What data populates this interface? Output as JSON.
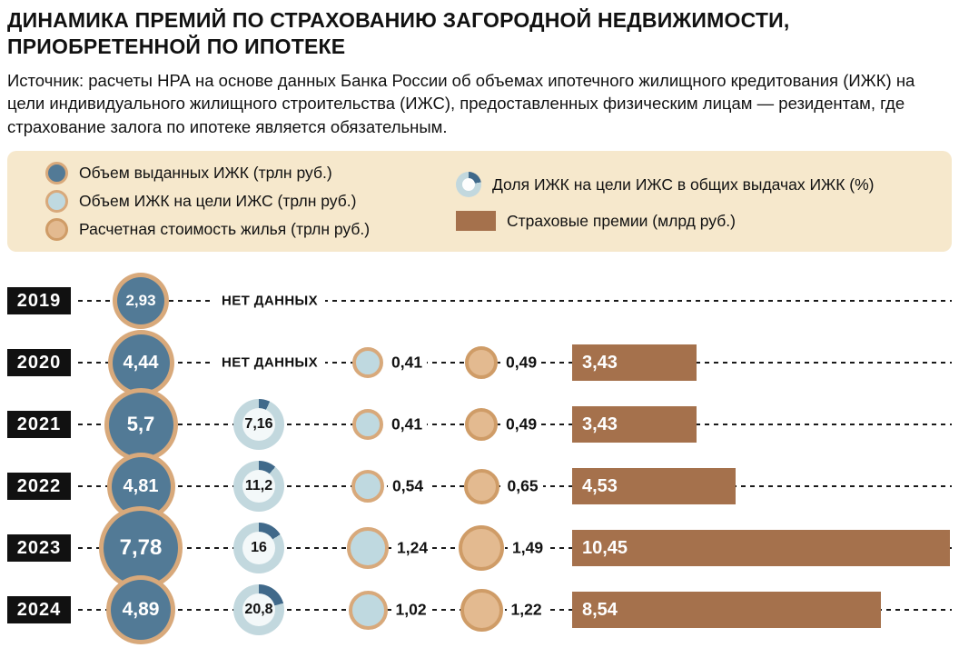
{
  "header": {
    "title": "ДИНАМИКА ПРЕМИЙ ПО СТРАХОВАНИЮ ЗАГОРОДНОЙ НЕДВИЖИМОСТИ, ПРИОБРЕТЕННОЙ ПО ИПОТЕКЕ",
    "source": "Источник: расчеты НРА на основе данных Банка России об объемах ипотечного жилищного кредитования (ИЖК) на цели индивидуального жилищного строительства (ИЖС), предоставленных физическим лицам — резидентам, где страхование залога по ипотеке является обязательным."
  },
  "legend": {
    "items": [
      {
        "label": "Объем выданных ИЖК (трлн руб.)",
        "icon": "issued-circle-icon",
        "color": "#527a96"
      },
      {
        "label": "Объем ИЖК на цели ИЖС (трлн руб.)",
        "icon": "izhs-circle-icon",
        "color": "#bfd9e0"
      },
      {
        "label": "Расчетная стоимость жилья (трлн руб.)",
        "icon": "cost-circle-icon",
        "color": "#e3ba90"
      },
      {
        "label": "Доля ИЖК на цели ИЖС в общих выдачах ИЖК (%)",
        "icon": "share-donut-icon",
        "color": "#40698a"
      },
      {
        "label": "Страховые премии (млрд руб.)",
        "icon": "premium-bar-icon",
        "color": "#a5714c"
      }
    ]
  },
  "colors": {
    "steel_blue": "#527a96",
    "donut_segment": "#40698a",
    "light_blue": "#bfd9e0",
    "donut_ring": "#c2d8de",
    "tan_ring": "#d8a97b",
    "tan_fill": "#e3ba90",
    "tan_dark_ring": "#cf9c67",
    "brown_bar": "#a5714c",
    "legend_bg": "#f6e8cc",
    "text": "#111111"
  },
  "chart_data": {
    "type": "bar",
    "subtype": "bubble-donut-bar-infographic",
    "no_data_label": "НЕТ ДАННЫХ",
    "premium_axis_max": 10.45,
    "series_names": {
      "izhk_issued": "Объем выданных ИЖК (трлн руб.)",
      "izhs": "Объем ИЖК на цели ИЖС (трлн руб.)",
      "cost": "Расчетная стоимость жилья (трлн руб.)",
      "share_pct": "Доля ИЖК на цели ИЖС в общих выдачах ИЖК (%)",
      "premium": "Страховые премии (млрд руб.)"
    },
    "rows": [
      {
        "year": "2019",
        "izhk_issued": 2.93,
        "izhk_issued_label": "2,93",
        "share_pct": null,
        "share_label": null,
        "izhs": null,
        "izhs_label": null,
        "cost": null,
        "cost_label": null,
        "premium": null,
        "premium_label": null,
        "no_data": true
      },
      {
        "year": "2020",
        "izhk_issued": 4.44,
        "izhk_issued_label": "4,44",
        "share_pct": null,
        "share_label": null,
        "izhs": 0.41,
        "izhs_label": "0,41",
        "cost": 0.49,
        "cost_label": "0,49",
        "premium": 3.43,
        "premium_label": "3,43",
        "no_data": true
      },
      {
        "year": "2021",
        "izhk_issued": 5.7,
        "izhk_issued_label": "5,7",
        "share_pct": 7.16,
        "share_label": "7,16",
        "izhs": 0.41,
        "izhs_label": "0,41",
        "cost": 0.49,
        "cost_label": "0,49",
        "premium": 3.43,
        "premium_label": "3,43",
        "no_data": false
      },
      {
        "year": "2022",
        "izhk_issued": 4.81,
        "izhk_issued_label": "4,81",
        "share_pct": 11.2,
        "share_label": "11,2",
        "izhs": 0.54,
        "izhs_label": "0,54",
        "cost": 0.65,
        "cost_label": "0,65",
        "premium": 4.53,
        "premium_label": "4,53",
        "no_data": false
      },
      {
        "year": "2023",
        "izhk_issued": 7.78,
        "izhk_issued_label": "7,78",
        "share_pct": 16,
        "share_label": "16",
        "izhs": 1.24,
        "izhs_label": "1,24",
        "cost": 1.49,
        "cost_label": "1,49",
        "premium": 10.45,
        "premium_label": "10,45",
        "no_data": false
      },
      {
        "year": "2024",
        "izhk_issued": 4.89,
        "izhk_issued_label": "4,89",
        "share_pct": 20.8,
        "share_label": "20,8",
        "izhs": 1.02,
        "izhs_label": "1,02",
        "cost": 1.22,
        "cost_label": "1,22",
        "premium": 8.54,
        "premium_label": "8,54",
        "no_data": false
      }
    ]
  }
}
